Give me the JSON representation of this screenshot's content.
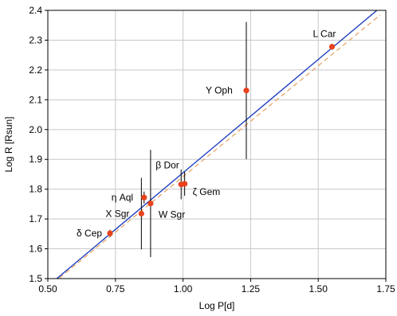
{
  "chart_data": {
    "type": "scatter",
    "xlabel": "Log P[d]",
    "ylabel": "Log R [Rsun]",
    "xlim": [
      0.5,
      1.75
    ],
    "ylim": [
      1.5,
      2.4
    ],
    "xticks": [
      "0.50",
      "0.75",
      "1.00",
      "1.25",
      "1.50",
      "1.75"
    ],
    "yticks": [
      "1.5",
      "1.6",
      "1.7",
      "1.8",
      "1.9",
      "2.0",
      "2.1",
      "2.2",
      "2.3",
      "2.4"
    ],
    "grid": true,
    "colors": {
      "points": "#e8421c",
      "fit_line": "#1f3fbf",
      "dashed_line": "#e8a060",
      "error_bars": "#000000",
      "grid": "#c8c8c8"
    },
    "points": [
      {
        "label": "δ Cep",
        "x": 0.73,
        "y": 1.652,
        "err": 0.012
      },
      {
        "label": "X Sgr",
        "x": 0.846,
        "y": 1.718,
        "err": 0.12
      },
      {
        "label": "η Aql",
        "x": 0.856,
        "y": 1.772,
        "err": 0.02
      },
      {
        "label": "W Sgr",
        "x": 0.88,
        "y": 1.752,
        "err": 0.18
      },
      {
        "label": "β Dor",
        "x": 0.993,
        "y": 1.816,
        "err": 0.05
      },
      {
        "label": "ζ Gem",
        "x": 1.006,
        "y": 1.818,
        "err": 0.04
      },
      {
        "label": "Y Oph",
        "x": 1.234,
        "y": 2.131,
        "err": 0.23
      },
      {
        "label": "L Car",
        "x": 1.551,
        "y": 2.278,
        "err": 0.01
      }
    ],
    "lines": [
      {
        "style": "solid",
        "x": [
          0.52,
          1.73
        ],
        "y": [
          1.49,
          2.41
        ]
      },
      {
        "style": "dashed",
        "x": [
          0.52,
          1.73
        ],
        "y": [
          1.485,
          2.385
        ]
      }
    ]
  }
}
